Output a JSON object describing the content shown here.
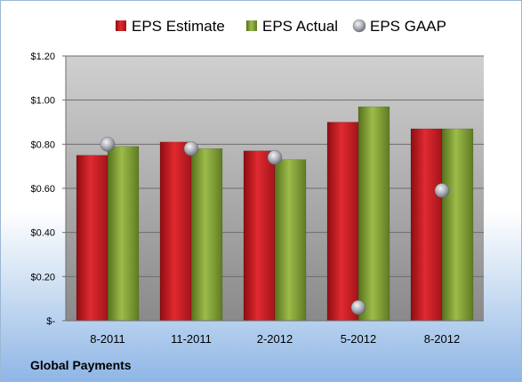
{
  "chart_data": {
    "type": "bar",
    "categories": [
      "8-2011",
      "11-2011",
      "2-2012",
      "5-2012",
      "8-2012"
    ],
    "series": [
      {
        "name": "EPS Estimate",
        "values": [
          0.75,
          0.81,
          0.77,
          0.9,
          0.87
        ],
        "color": "#c0161e",
        "kind": "bar"
      },
      {
        "name": "EPS Actual",
        "values": [
          0.79,
          0.78,
          0.73,
          0.97,
          0.87
        ],
        "color": "#7a9a2e",
        "kind": "bar"
      },
      {
        "name": "EPS GAAP",
        "values": [
          0.8,
          0.78,
          0.74,
          0.06,
          0.59
        ],
        "color": "#a9acb3",
        "kind": "marker"
      }
    ],
    "ylim": [
      0,
      1.2
    ],
    "yticks": [
      {
        "value": 0,
        "label": "$-"
      },
      {
        "value": 0.2,
        "label": "$0.20"
      },
      {
        "value": 0.4,
        "label": "$0.40"
      },
      {
        "value": 0.6,
        "label": "$0.60"
      },
      {
        "value": 0.8,
        "label": "$0.80"
      },
      {
        "value": 1.0,
        "label": "$1.00"
      },
      {
        "value": 1.2,
        "label": "$1.20"
      }
    ],
    "grid": true,
    "legend_position": "top"
  },
  "footer": {
    "label": "Global Payments"
  }
}
